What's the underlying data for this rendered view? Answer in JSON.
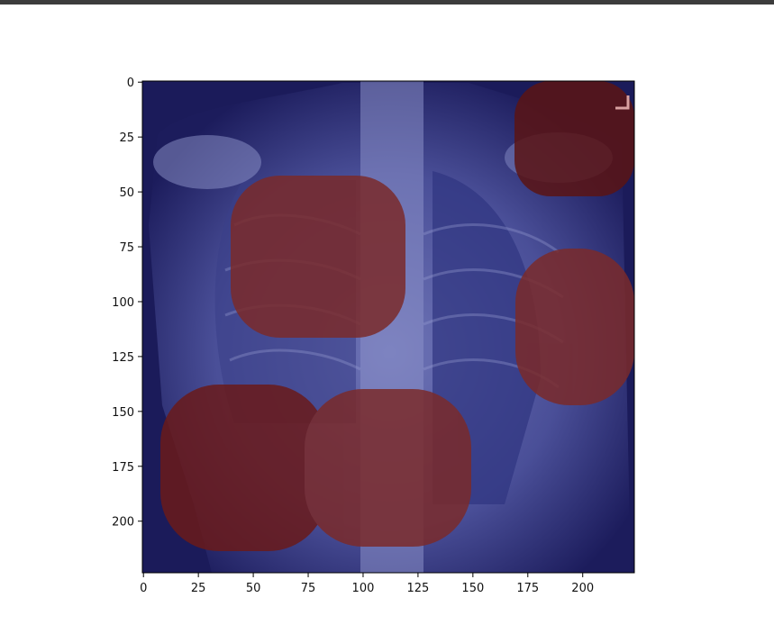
{
  "plot": {
    "x_ticks": [
      "0",
      "25",
      "50",
      "75",
      "100",
      "125",
      "150",
      "175",
      "200"
    ],
    "y_ticks": [
      "0",
      "25",
      "50",
      "75",
      "100",
      "125",
      "150",
      "175",
      "200"
    ],
    "overlay_colors": {
      "high": "#7a1e1e",
      "low": "#1e1e6e"
    }
  }
}
